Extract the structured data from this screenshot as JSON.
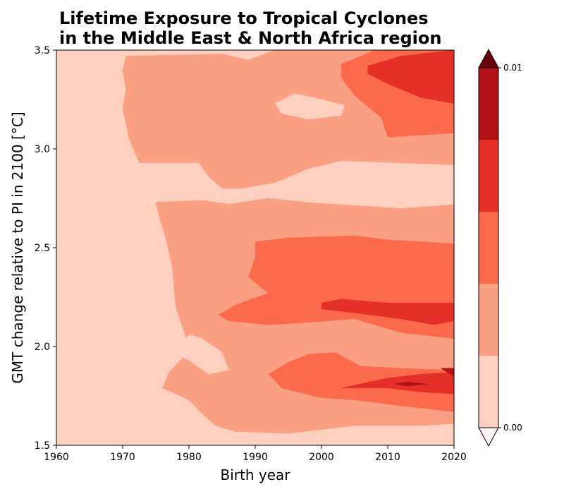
{
  "chart_data": {
    "type": "heatmap",
    "title_lines": [
      "Lifetime Exposure to Tropical Cyclones",
      "in the Middle East & North Africa region"
    ],
    "xlabel": "Birth year",
    "ylabel": "GMT change relative to PI in 2100 [°C]",
    "xlim": [
      1960,
      2020
    ],
    "ylim": [
      1.5,
      3.5
    ],
    "x_ticks": [
      1960,
      1970,
      1980,
      1990,
      2000,
      2010,
      2020
    ],
    "x_tick_labels": [
      "1960",
      "1970",
      "1980",
      "1990",
      "2000",
      "2010",
      "2020"
    ],
    "y_ticks": [
      1.5,
      2.0,
      2.5,
      3.0,
      3.5
    ],
    "y_tick_labels": [
      "1.5",
      "2.0",
      "2.5",
      "3.0",
      "3.5"
    ],
    "colorbar": {
      "levels": [
        0.0,
        0.002,
        0.004,
        0.006,
        0.008,
        0.01
      ],
      "tick_labels": [
        "0.00",
        "0.01"
      ],
      "tick_values": [
        0.0,
        0.01
      ],
      "colors": [
        "#fdd0c0",
        "#fba083",
        "#fc6a4c",
        "#e53027",
        "#b01218"
      ],
      "under_color": "#fff5f0",
      "over_color": "#67000d",
      "extend": "both"
    },
    "contour_levels": [
      {
        "level": 1,
        "color": "#fba083",
        "polygons": [
          [
            [
              1970.5,
              3.47
            ],
            [
              1985,
              3.48
            ],
            [
              1989,
              3.45
            ],
            [
              1993,
              3.5
            ],
            [
              2020,
              3.5
            ],
            [
              2020,
              2.92
            ],
            [
              2003,
              2.94
            ],
            [
              1998,
              2.9
            ],
            [
              1993,
              2.83
            ],
            [
              1988,
              2.8
            ],
            [
              1985,
              2.8
            ],
            [
              1983,
              2.86
            ],
            [
              1981.5,
              2.93
            ],
            [
              1972.5,
              2.93
            ],
            [
              1971,
              3.05
            ],
            [
              1970,
              3.2
            ],
            [
              1970.5,
              3.3
            ],
            [
              1970,
              3.4
            ]
          ],
          [
            [
              1975,
              2.73
            ],
            [
              1982,
              2.74
            ],
            [
              1986,
              2.72
            ],
            [
              1992,
              2.75
            ],
            [
              1998,
              2.73
            ],
            [
              2003,
              2.72
            ],
            [
              2012,
              2.71
            ],
            [
              2020,
              2.72
            ],
            [
              2020,
              1.61
            ],
            [
              2015,
              1.6
            ],
            [
              2005,
              1.6
            ],
            [
              1995,
              1.56
            ],
            [
              1987,
              1.57
            ],
            [
              1984,
              1.6
            ],
            [
              1982,
              1.66
            ],
            [
              1980,
              1.73
            ],
            [
              1976,
              1.79
            ],
            [
              1977,
              1.87
            ],
            [
              1979,
              1.94
            ],
            [
              1979.5,
              2.05
            ],
            [
              1978,
              2.2
            ],
            [
              1977.5,
              2.4
            ],
            [
              1976.5,
              2.55
            ],
            [
              1975.5,
              2.66
            ]
          ]
        ]
      },
      {
        "level": 0,
        "color": "#fdd0c0",
        "polygons": [
          [
            [
              1993,
              3.23
            ],
            [
              1996,
              3.28
            ],
            [
              2000,
              3.25
            ],
            [
              2003.5,
              3.22
            ],
            [
              2003,
              3.17
            ],
            [
              1998,
              3.15
            ],
            [
              1994,
              3.18
            ]
          ],
          [
            [
              1978,
              1.96
            ],
            [
              1980,
              1.93
            ],
            [
              1983,
              1.86
            ],
            [
              1986,
              1.88
            ],
            [
              1985,
              1.97
            ],
            [
              1982,
              2.04
            ],
            [
              1980,
              2.06
            ],
            [
              1979,
              2.02
            ]
          ],
          [
            [
              1993,
              2.8
            ],
            [
              1998,
              2.88
            ],
            [
              2003,
              2.92
            ],
            [
              2012,
              2.9
            ],
            [
              2020,
              2.87
            ],
            [
              2020,
              2.72
            ],
            [
              2012,
              2.7
            ],
            [
              2003,
              2.72
            ],
            [
              1998,
              2.73
            ],
            [
              1993,
              2.75
            ]
          ]
        ]
      },
      {
        "level": 2,
        "color": "#fc6a4c",
        "polygons": [
          [
            [
              2003,
              3.43
            ],
            [
              2006,
              3.47
            ],
            [
              2008,
              3.5
            ],
            [
              2020,
              3.5
            ],
            [
              2020,
              3.08
            ],
            [
              2010,
              3.06
            ],
            [
              2009,
              3.16
            ],
            [
              2005,
              3.27
            ],
            [
              2003,
              3.36
            ]
          ],
          [
            [
              1990,
              2.53
            ],
            [
              1995,
              2.55
            ],
            [
              2005,
              2.56
            ],
            [
              2010,
              2.54
            ],
            [
              2020,
              2.52
            ],
            [
              2020,
              2.04
            ],
            [
              2012,
              2.07
            ],
            [
              2005,
              2.14
            ],
            [
              1997,
              2.12
            ],
            [
              1992,
              2.11
            ],
            [
              1986,
              2.13
            ],
            [
              1984.5,
              2.16
            ],
            [
              1987,
              2.21
            ],
            [
              1992,
              2.27
            ],
            [
              1989,
              2.35
            ],
            [
              1990,
              2.45
            ]
          ],
          [
            [
              1995,
              1.92
            ],
            [
              1998,
              1.96
            ],
            [
              2002,
              1.97
            ],
            [
              2006,
              1.9
            ],
            [
              2012,
              1.89
            ],
            [
              2020,
              1.88
            ],
            [
              2020,
              1.67
            ],
            [
              2012,
              1.7
            ],
            [
              2005,
              1.73
            ],
            [
              2000,
              1.74
            ],
            [
              1994,
              1.79
            ],
            [
              1992,
              1.86
            ]
          ]
        ]
      },
      {
        "level": 3,
        "color": "#e53027",
        "polygons": [
          [
            [
              2007,
              3.42
            ],
            [
              2012,
              3.47
            ],
            [
              2020,
              3.5
            ],
            [
              2020,
              3.23
            ],
            [
              2015,
              3.26
            ],
            [
              2010,
              3.33
            ],
            [
              2007,
              3.38
            ]
          ],
          [
            [
              2000,
              2.22
            ],
            [
              2003,
              2.24
            ],
            [
              2010,
              2.22
            ],
            [
              2020,
              2.22
            ],
            [
              2020,
              2.13
            ],
            [
              2017,
              2.11
            ],
            [
              2012,
              2.14
            ],
            [
              2005,
              2.17
            ],
            [
              2000,
              2.19
            ]
          ],
          [
            [
              2003,
              1.79
            ],
            [
              2010,
              1.84
            ],
            [
              2015,
              1.86
            ],
            [
              2020,
              1.87
            ],
            [
              2020,
              1.76
            ],
            [
              2015,
              1.77
            ],
            [
              2010,
              1.79
            ],
            [
              2005,
              1.79
            ]
          ]
        ]
      },
      {
        "level": 4,
        "color": "#b01218",
        "polygons": [
          [
            [
              2011,
              1.81
            ],
            [
              2013,
              1.82
            ],
            [
              2016,
              1.81
            ],
            [
              2013,
              1.8
            ]
          ],
          [
            [
              2018,
              1.89
            ],
            [
              2020,
              1.89
            ],
            [
              2020,
              1.85
            ],
            [
              2019,
              1.87
            ]
          ]
        ]
      }
    ]
  }
}
